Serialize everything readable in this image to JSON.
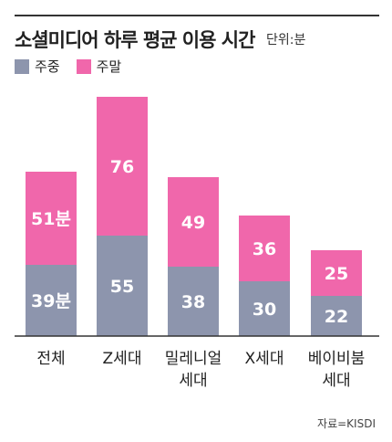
{
  "title": "소셜미디어 하루 평균 이용 시간",
  "unit": "단위:분",
  "source": "자료=KISDI",
  "colors": {
    "weekday": "#8d95ad",
    "weekend": "#f067ab"
  },
  "chart_data": {
    "type": "bar",
    "stacked": true,
    "categories": [
      "전체",
      "Z세대",
      "밀레니얼\n세대",
      "X세대",
      "베이비붐\n세대"
    ],
    "series": [
      {
        "name": "주중",
        "values": [
          39,
          55,
          38,
          30,
          22
        ],
        "labels": [
          "39분",
          "55",
          "38",
          "30",
          "22"
        ]
      },
      {
        "name": "주말",
        "values": [
          51,
          76,
          49,
          36,
          25
        ],
        "labels": [
          "51분",
          "76",
          "49",
          "36",
          "25"
        ]
      }
    ],
    "legend": "top-left",
    "grid": false
  }
}
